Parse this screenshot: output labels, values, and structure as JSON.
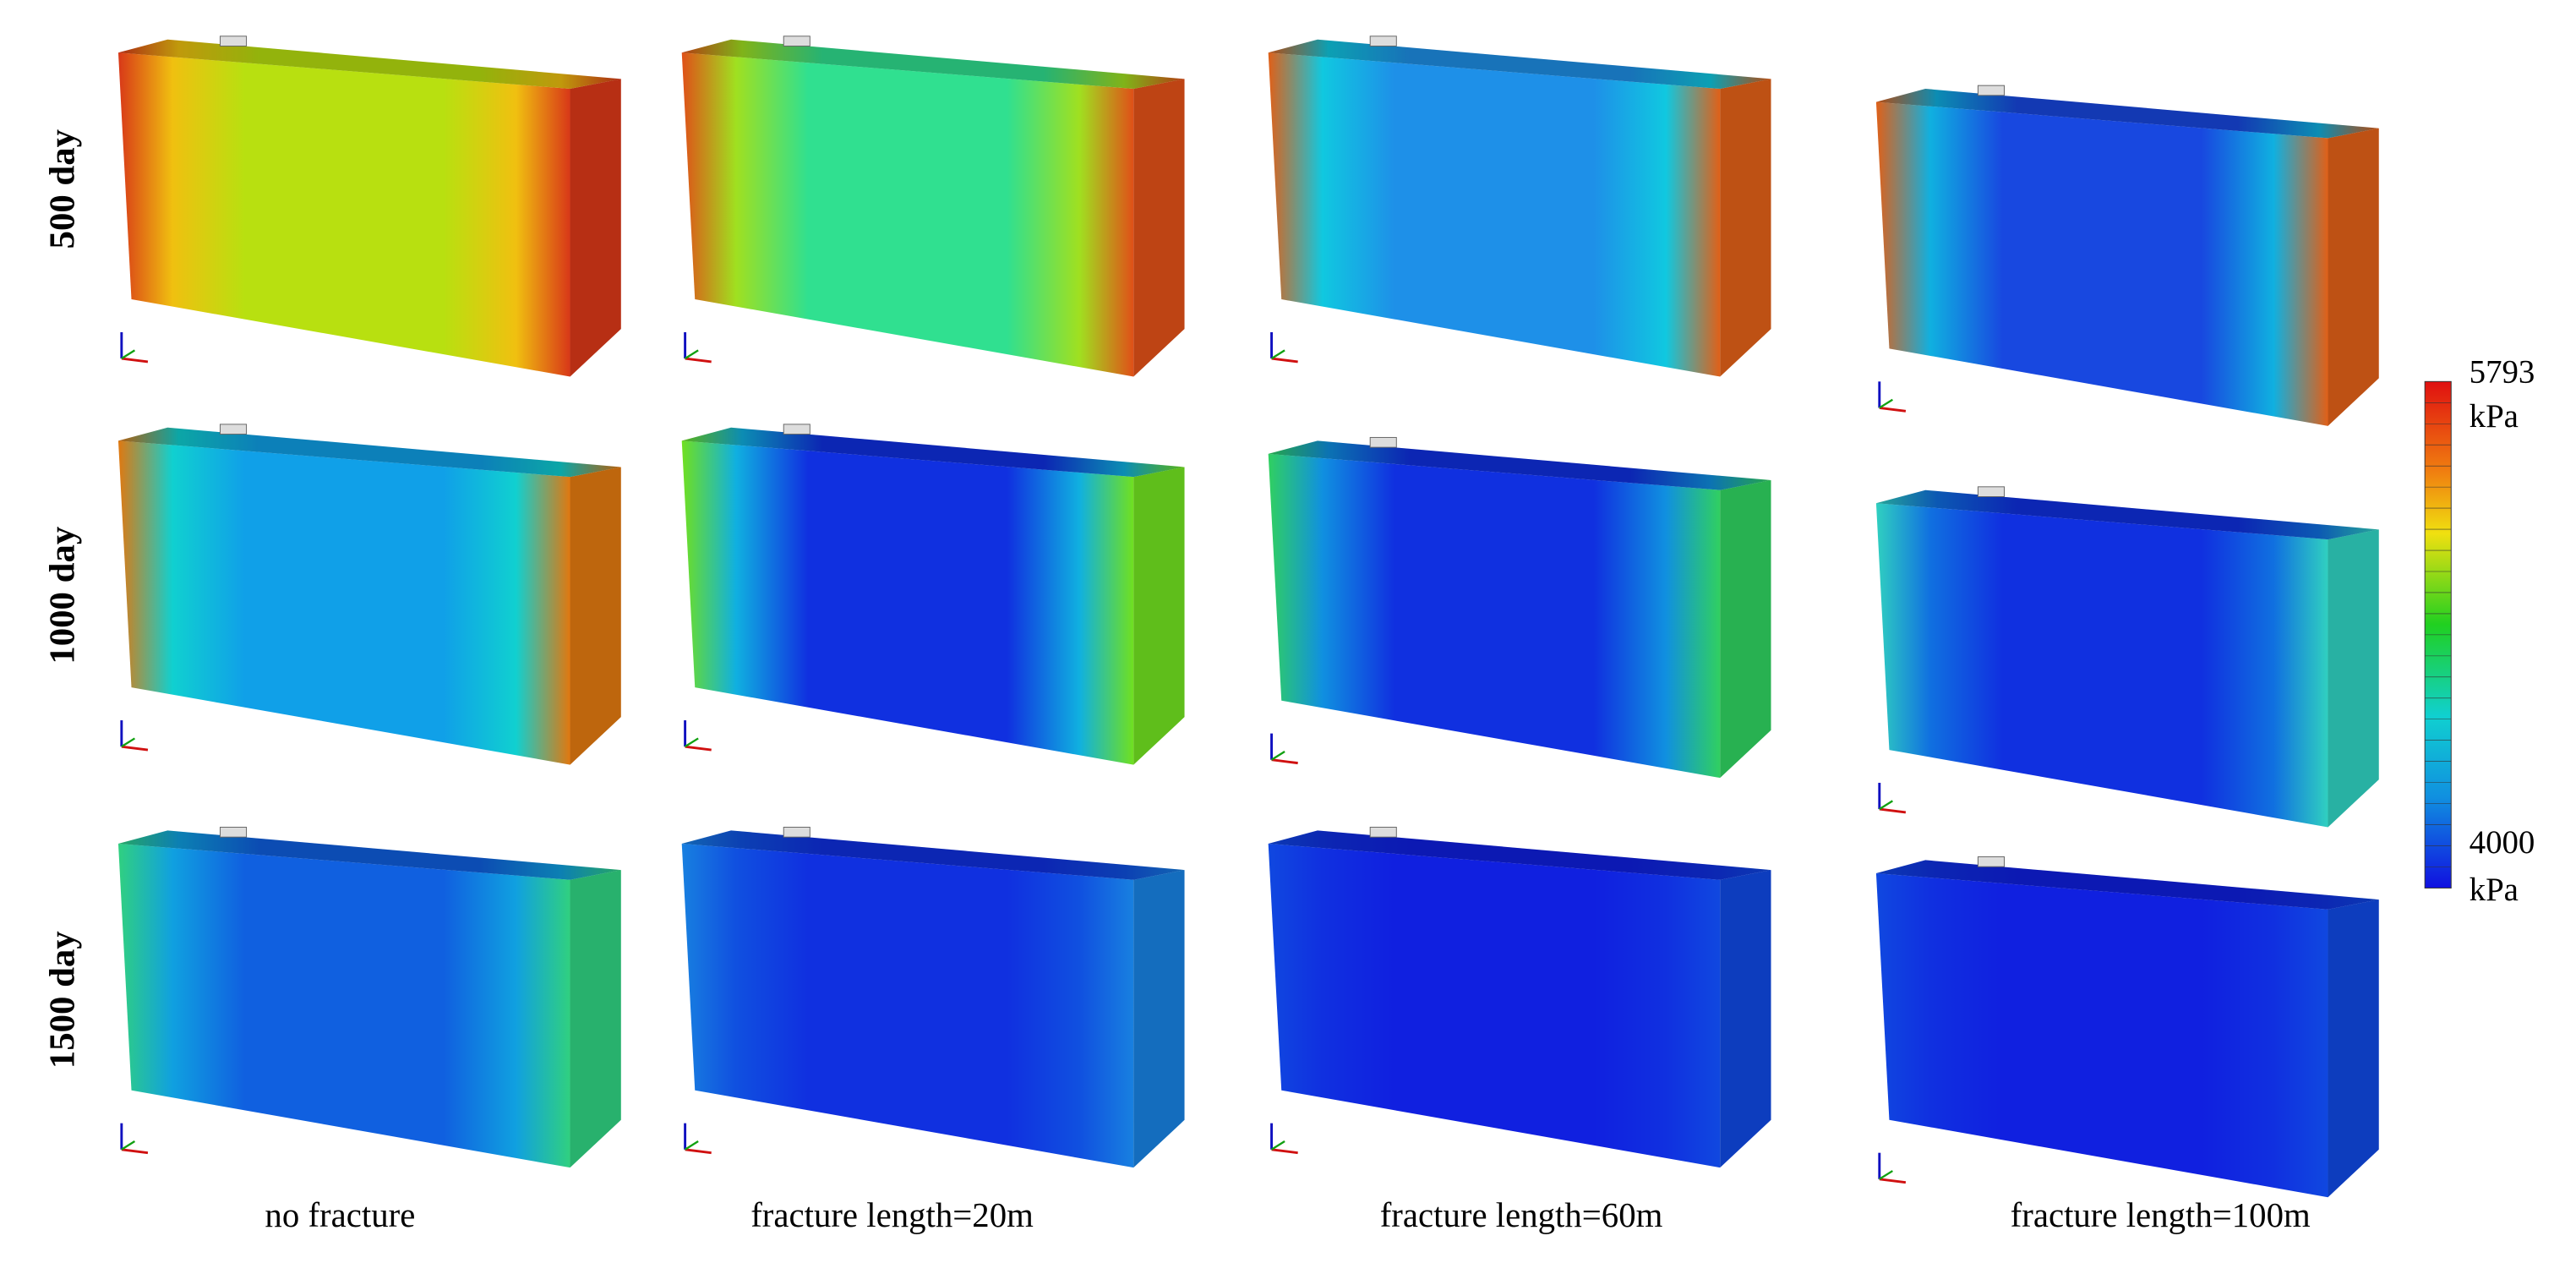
{
  "row_labels": [
    "500 day",
    "1000 day",
    "1500 day"
  ],
  "column_labels": [
    "no fracture",
    "fracture length=20m",
    "fracture length=60m",
    "fracture length=100m"
  ],
  "colorbar": {
    "max": 5793,
    "min": 4000,
    "unit": "kPa"
  }
}
